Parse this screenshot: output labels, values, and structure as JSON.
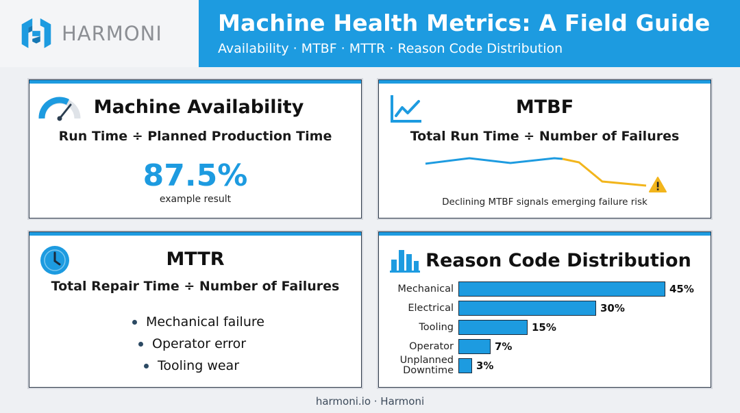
{
  "brand": {
    "name": "HARMONI",
    "logo_icon": "harmoni-hex-logo-icon"
  },
  "banner": {
    "title": "Machine Health Metrics: A Field Guide",
    "subtitle": "Availability · MTBF · MTTR · Reason Code Distribution"
  },
  "availability": {
    "icon": "gauge-icon",
    "title": "Machine Availability",
    "formula": "Run Time ÷ Planned Production Time",
    "value": "87.5%",
    "caption": "example result"
  },
  "mtbf": {
    "icon": "line-chart-icon",
    "title": "MTBF",
    "formula": "Total Run Time ÷ Number of Failures",
    "trend_icon": "warning-icon",
    "note": "Declining MTBF signals emerging failure risk",
    "colors": {
      "stable": "#1d9be0",
      "declining": "#f2b51c"
    }
  },
  "mttr": {
    "icon": "clock-icon",
    "title": "MTTR",
    "formula": "Total Repair Time ÷ Number of Failures",
    "items": [
      "Mechanical failure",
      "Operator error",
      "Tooling wear"
    ]
  },
  "reason": {
    "icon": "bar-chart-icon",
    "title": "Reason Code Distribution",
    "bars": [
      {
        "label": "Mechanical",
        "value": 45,
        "value_label": "45%"
      },
      {
        "label": "Electrical",
        "value": 30,
        "value_label": "30%"
      },
      {
        "label": "Tooling",
        "value": 15,
        "value_label": "15%"
      },
      {
        "label": "Operator",
        "value": 7,
        "value_label": "7%"
      },
      {
        "label": "Unplanned Downtime",
        "value": 3,
        "value_label": "3%"
      }
    ]
  },
  "footer": {
    "text": "harmoni.io · Harmoni"
  },
  "colors": {
    "accent": "#1d9be0",
    "warning": "#f2b51c"
  }
}
